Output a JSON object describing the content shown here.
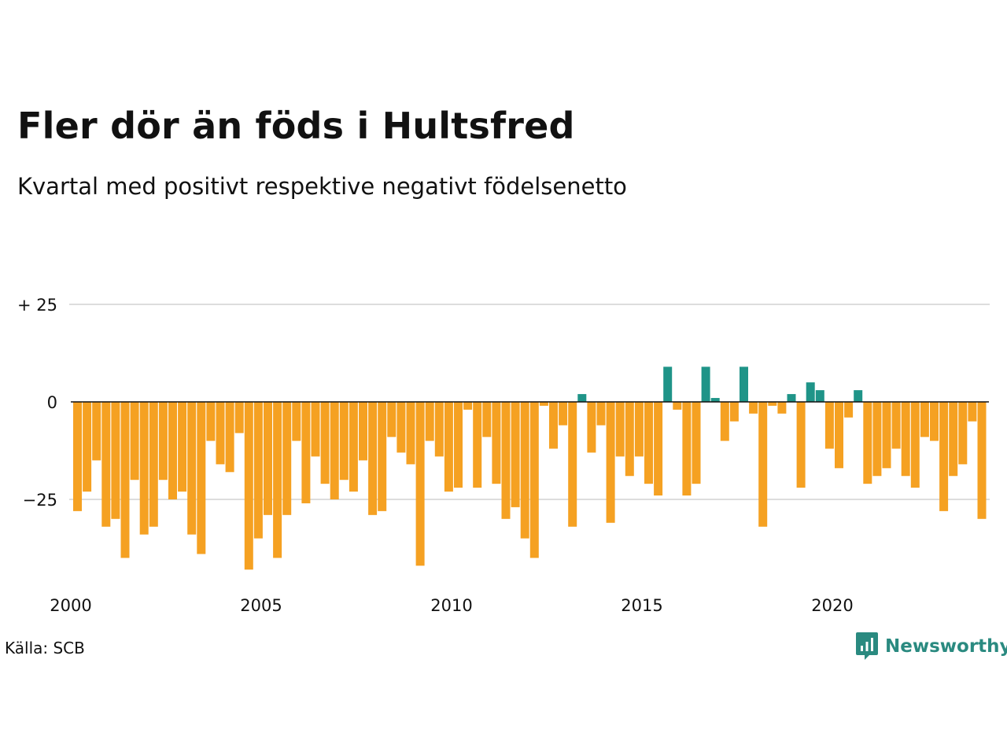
{
  "colors": {
    "positive": "#1f9488",
    "negative": "#f5a122",
    "grid": "#dddddd",
    "zero_line": "#111111",
    "text": "#111111",
    "brand": "#2a8a80"
  },
  "header": {
    "title": "Fler dör än föds i Hultsfred",
    "subtitle": "Kvartal med positivt respektive negativt födelsenetto"
  },
  "footer": {
    "source": "Källa: SCB",
    "brand": "Newsworthy",
    "brand_icon": "newsworthy-logo-icon"
  },
  "chart_data": {
    "type": "bar",
    "title": "Fler dör än föds i Hultsfred",
    "subtitle": "Kvartal med positivt respektive negativt födelsenetto",
    "x_start_year": 2000,
    "quarters_per_year": 4,
    "ylim": [
      -44,
      27
    ],
    "grid": true,
    "y_ticks": [
      {
        "value": 25,
        "label": "+ 25"
      },
      {
        "value": 0,
        "label": "0"
      },
      {
        "value": -25,
        "label": "−25"
      }
    ],
    "x_ticks": [
      {
        "year": 2000,
        "label": "2000"
      },
      {
        "year": 2005,
        "label": "2005"
      },
      {
        "year": 2010,
        "label": "2010"
      },
      {
        "year": 2015,
        "label": "2015"
      },
      {
        "year": 2020,
        "label": "2020"
      }
    ],
    "values": [
      -28,
      -23,
      -15,
      -32,
      -30,
      -40,
      -20,
      -34,
      -32,
      -20,
      -25,
      -23,
      -34,
      -39,
      -10,
      -16,
      -18,
      -8,
      -43,
      -35,
      -29,
      -40,
      -29,
      -10,
      -26,
      -14,
      -21,
      -25,
      -20,
      -23,
      -15,
      -29,
      -28,
      -9,
      -13,
      -16,
      -42,
      -10,
      -14,
      -23,
      -22,
      -2,
      -22,
      -9,
      -21,
      -30,
      -27,
      -35,
      -40,
      -1,
      -12,
      -6,
      -32,
      2,
      -13,
      -6,
      -31,
      -14,
      -19,
      -14,
      -21,
      -24,
      9,
      -2,
      -24,
      -21,
      9,
      1,
      -10,
      -5,
      9,
      -3,
      -32,
      -1,
      -3,
      2,
      -22,
      5,
      3,
      -12,
      -17,
      -4,
      3,
      -21,
      -19,
      -17,
      -12,
      -19,
      -22,
      -9,
      -10,
      -28,
      -19,
      -16,
      -5,
      -30
    ]
  }
}
